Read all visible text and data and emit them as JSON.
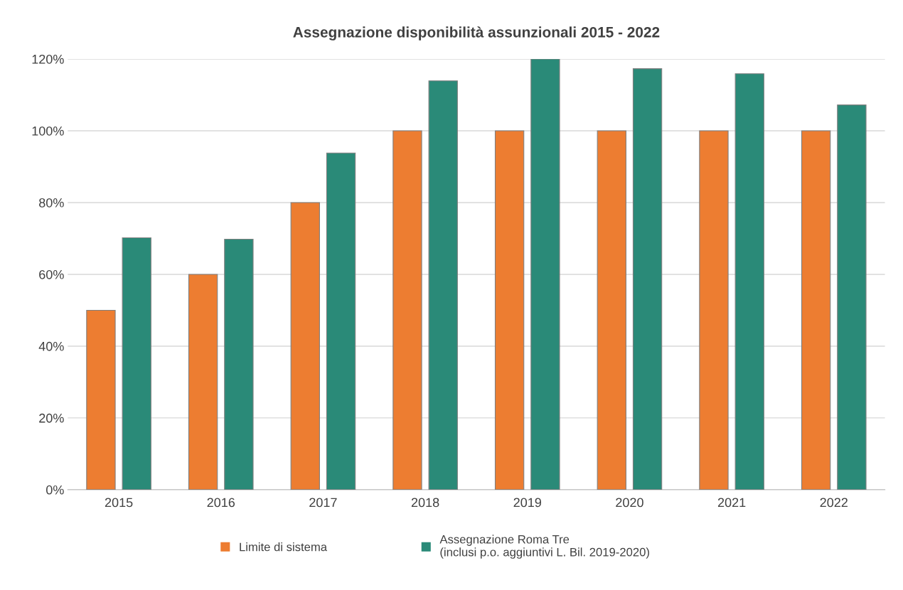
{
  "chart_data": {
    "type": "bar",
    "title": "Assegnazione disponibilità assunzionali 2015 - 2022",
    "categories": [
      "2015",
      "2016",
      "2017",
      "2018",
      "2019",
      "2020",
      "2021",
      "2022"
    ],
    "series": [
      {
        "name": "Limite di sistema",
        "color": "#ed7d31",
        "values": [
          50,
          60,
          80,
          100,
          100,
          100,
          100,
          100
        ]
      },
      {
        "name": "Assegnazione Roma Tre\n(inclusi p.o. aggiuntivi L. Bil. 2019-2020)",
        "color": "#2a8a78",
        "values": [
          70.2,
          69.8,
          93.8,
          113.9,
          120,
          117.3,
          115.9,
          107.2
        ]
      }
    ],
    "ylim": [
      0,
      120
    ],
    "yticks": [
      {
        "value": 0,
        "label": "0%"
      },
      {
        "value": 20,
        "label": "20%"
      },
      {
        "value": 40,
        "label": "40%"
      },
      {
        "value": 60,
        "label": "60%"
      },
      {
        "value": 80,
        "label": "80%"
      },
      {
        "value": 100,
        "label": "100%"
      },
      {
        "value": 120,
        "label": "120%"
      }
    ],
    "grid": "y",
    "legend": "bottom"
  }
}
